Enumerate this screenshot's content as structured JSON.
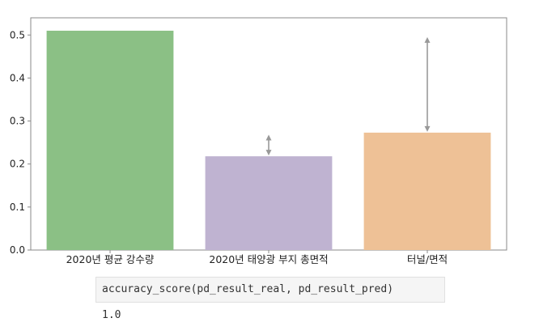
{
  "chart_data": {
    "type": "bar",
    "categories": [
      "2020년 평균 강수량",
      "2020년 태양광 부지 총면적",
      "터널/면적"
    ],
    "values": [
      0.51,
      0.218,
      0.273
    ],
    "error_bars": [
      {
        "low": 0.51,
        "high": 0.51
      },
      {
        "low": 0.218,
        "high": 0.27
      },
      {
        "low": 0.273,
        "high": 0.497
      }
    ],
    "colors": [
      "#8bc085",
      "#bfb3d1",
      "#eec196"
    ],
    "error_color": "#999999",
    "ylim": [
      0,
      0.54
    ],
    "yticks": [
      "0.0",
      "0.1",
      "0.2",
      "0.3",
      "0.4",
      "0.5"
    ],
    "ytick_values": [
      0,
      0.1,
      0.2,
      0.3,
      0.4,
      0.5
    ],
    "title": "",
    "xlabel": "",
    "ylabel": "",
    "grid": false
  },
  "code_cell": {
    "input": "accuracy_score(pd_result_real, pd_result_pred)",
    "output": "1.0"
  }
}
